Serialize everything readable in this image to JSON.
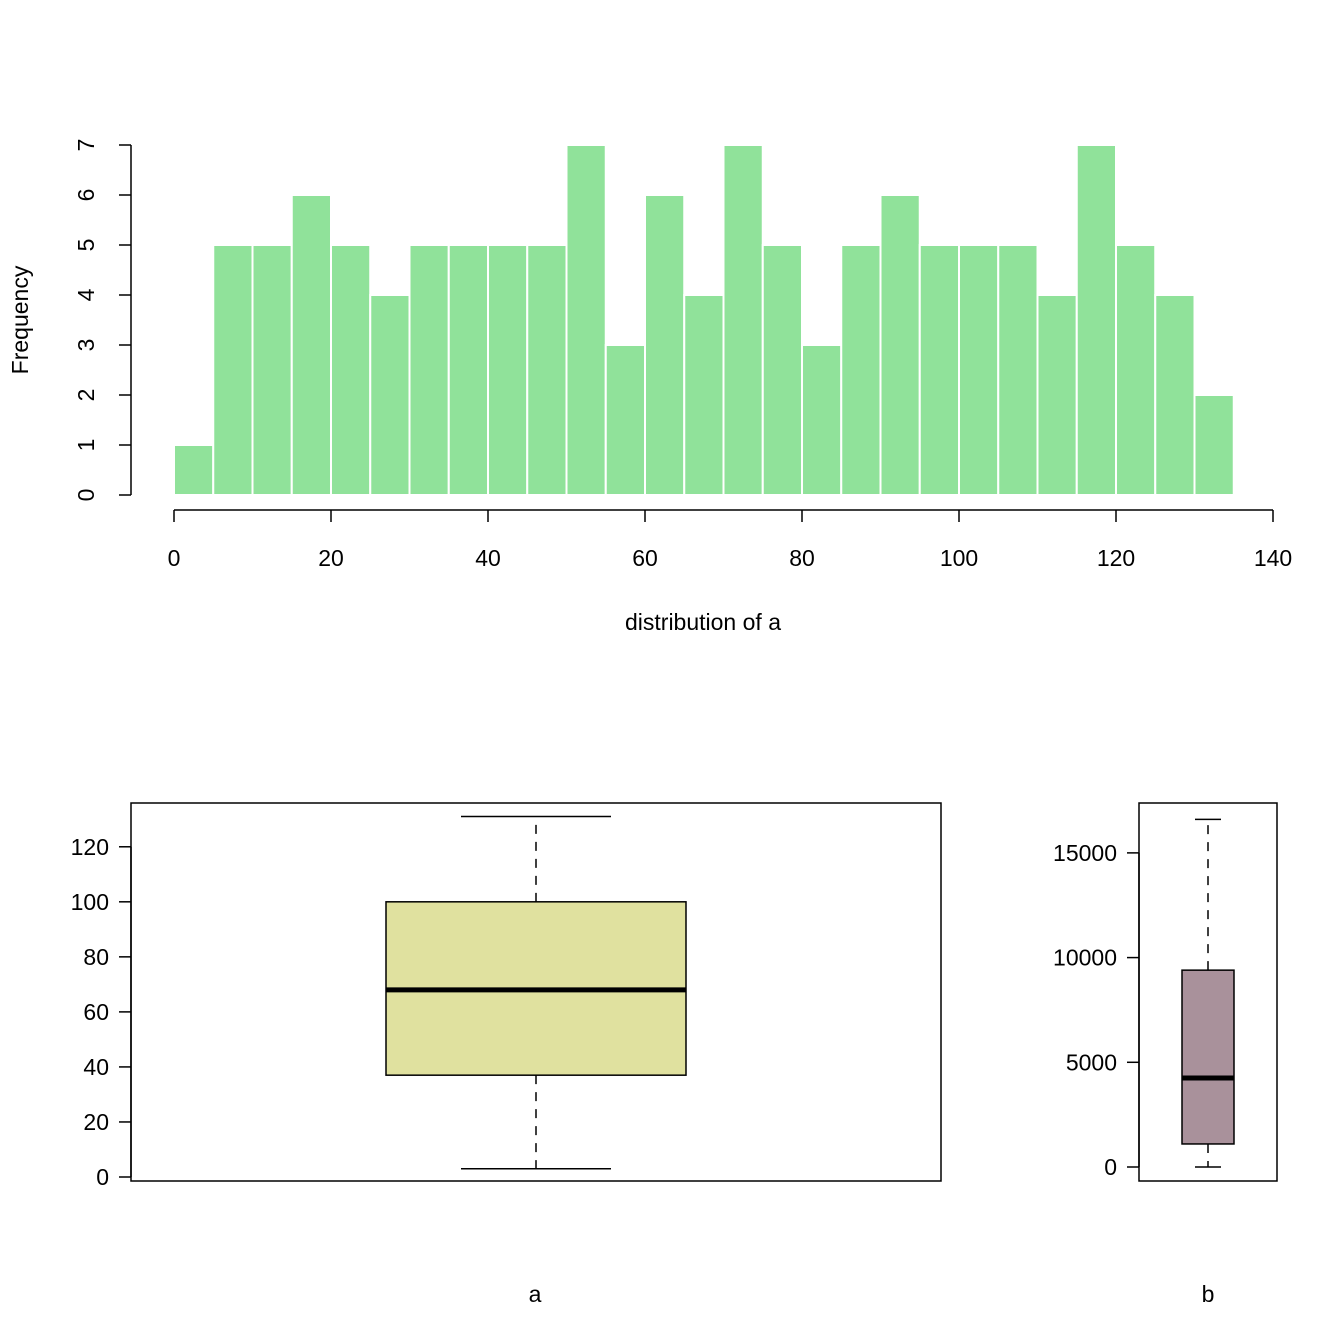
{
  "chart_data": [
    {
      "type": "bar",
      "subtype": "histogram",
      "xlabel": "distribution of a",
      "ylabel": "Frequency",
      "bin_width": 5,
      "bins": [
        [
          0,
          5
        ],
        [
          5,
          10
        ],
        [
          10,
          15
        ],
        [
          15,
          20
        ],
        [
          20,
          25
        ],
        [
          25,
          30
        ],
        [
          30,
          35
        ],
        [
          35,
          40
        ],
        [
          40,
          45
        ],
        [
          45,
          50
        ],
        [
          50,
          55
        ],
        [
          55,
          60
        ],
        [
          60,
          65
        ],
        [
          65,
          70
        ],
        [
          70,
          75
        ],
        [
          75,
          80
        ],
        [
          80,
          85
        ],
        [
          85,
          90
        ],
        [
          90,
          95
        ],
        [
          95,
          100
        ],
        [
          100,
          105
        ],
        [
          105,
          110
        ],
        [
          110,
          115
        ],
        [
          115,
          120
        ],
        [
          120,
          125
        ],
        [
          125,
          130
        ],
        [
          130,
          135
        ]
      ],
      "values": [
        1,
        5,
        5,
        6,
        5,
        4,
        5,
        5,
        5,
        5,
        7,
        3,
        6,
        4,
        7,
        5,
        3,
        5,
        6,
        5,
        5,
        5,
        4,
        7,
        5,
        4,
        2
      ],
      "xlim": [
        0,
        140
      ],
      "ylim": [
        0,
        7
      ],
      "xticks": [
        "0",
        "20",
        "40",
        "60",
        "80",
        "100",
        "120",
        "140"
      ],
      "yticks": [
        "0",
        "1",
        "2",
        "3",
        "4",
        "5",
        "6",
        "7"
      ],
      "color": "#90E29A",
      "grid": false
    },
    {
      "type": "boxplot",
      "xlabel": "a",
      "min": 3,
      "q1": 37,
      "median": 68,
      "q3": 100,
      "max": 131,
      "ylim": [
        0,
        135
      ],
      "yticks": [
        "0",
        "20",
        "40",
        "60",
        "80",
        "100",
        "120"
      ],
      "color": "#E0E19F",
      "grid": false
    },
    {
      "type": "boxplot",
      "xlabel": "b",
      "min": 0,
      "q1": 1100,
      "median": 4250,
      "q3": 9400,
      "max": 16600,
      "ylim": [
        0,
        17000
      ],
      "yticks": [
        "0",
        "5000",
        "10000",
        "15000"
      ],
      "color": "#A9919B",
      "grid": false
    }
  ]
}
